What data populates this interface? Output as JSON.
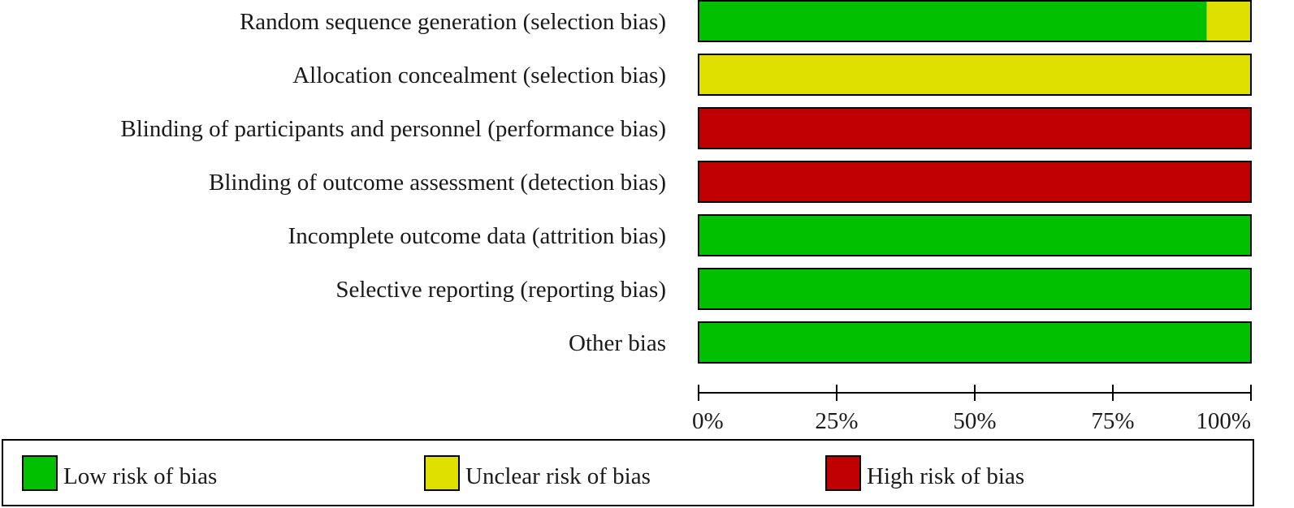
{
  "chart_data": {
    "type": "bar",
    "orientation": "horizontal",
    "stacked": true,
    "categories": [
      "Random sequence generation (selection bias)",
      "Allocation concealment (selection bias)",
      "Blinding of participants and personnel (performance bias)",
      "Blinding of outcome assessment (detection bias)",
      "Incomplete outcome data (attrition bias)",
      "Selective reporting (reporting bias)",
      "Other bias"
    ],
    "series": [
      {
        "name": "Low risk of bias",
        "color": "#00c000",
        "values": [
          92,
          0,
          0,
          0,
          100,
          100,
          100
        ]
      },
      {
        "name": "Unclear risk of bias",
        "color": "#e0e000",
        "values": [
          8,
          100,
          0,
          0,
          0,
          0,
          0
        ]
      },
      {
        "name": "High risk of bias",
        "color": "#c00000",
        "values": [
          0,
          0,
          100,
          100,
          0,
          0,
          0
        ]
      }
    ],
    "xlim": [
      0,
      100
    ],
    "x_ticks": [
      0,
      25,
      50,
      75,
      100
    ],
    "x_tick_labels": [
      "0%",
      "25%",
      "50%",
      "75%",
      "100%"
    ],
    "grid": false,
    "legend_position": "bottom"
  }
}
